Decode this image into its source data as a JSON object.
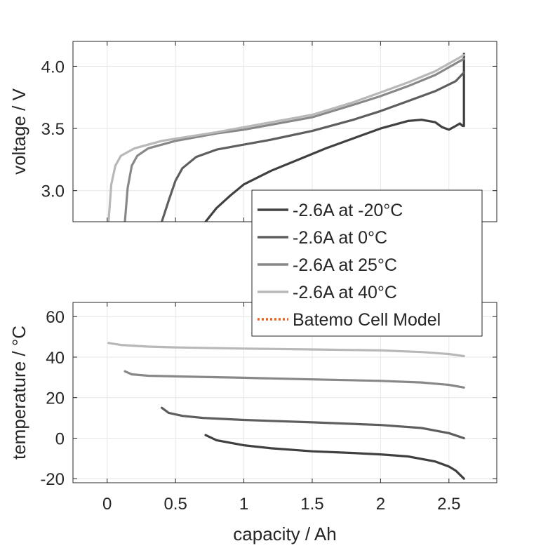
{
  "chart_data": [
    {
      "type": "line",
      "ylabel": "voltage / V",
      "xlim": [
        -0.25,
        2.85
      ],
      "ylim": [
        2.75,
        4.2
      ],
      "yticks": [
        3.0,
        3.5,
        4.0
      ],
      "ytick_labels": [
        "3.0",
        "3.5",
        "4.0"
      ],
      "xticks": [
        0,
        0.5,
        1,
        1.5,
        2,
        2.5
      ],
      "grid": true,
      "series": [
        {
          "name": "-2.6A at -20°C",
          "color": "#404040",
          "x": [
            0.72,
            0.8,
            0.9,
            1.0,
            1.2,
            1.4,
            1.6,
            1.8,
            2.0,
            2.2,
            2.3,
            2.4,
            2.45,
            2.5,
            2.55,
            2.58,
            2.6,
            2.61,
            2.61
          ],
          "y": [
            2.75,
            2.86,
            2.96,
            3.05,
            3.16,
            3.25,
            3.34,
            3.42,
            3.5,
            3.56,
            3.57,
            3.55,
            3.51,
            3.49,
            3.52,
            3.54,
            3.52,
            3.52,
            4.1
          ]
        },
        {
          "name": "-2.6A at 0°C",
          "color": "#5e5e5e",
          "x": [
            0.4,
            0.45,
            0.5,
            0.55,
            0.65,
            0.8,
            1.0,
            1.2,
            1.5,
            1.8,
            2.0,
            2.2,
            2.4,
            2.55,
            2.61
          ],
          "y": [
            2.75,
            2.92,
            3.08,
            3.18,
            3.27,
            3.33,
            3.37,
            3.41,
            3.48,
            3.57,
            3.64,
            3.72,
            3.8,
            3.88,
            3.95
          ]
        },
        {
          "name": "-2.6A at 25°C",
          "color": "#888888",
          "x": [
            0.13,
            0.15,
            0.18,
            0.22,
            0.3,
            0.5,
            0.8,
            1.0,
            1.5,
            1.8,
            2.0,
            2.2,
            2.4,
            2.61
          ],
          "y": [
            2.75,
            3.02,
            3.2,
            3.28,
            3.34,
            3.4,
            3.46,
            3.49,
            3.59,
            3.69,
            3.76,
            3.84,
            3.93,
            4.06
          ]
        },
        {
          "name": "-2.6A at 40°C",
          "color": "#b8b8b8",
          "x": [
            0.01,
            0.03,
            0.06,
            0.1,
            0.2,
            0.4,
            0.8,
            1.0,
            1.5,
            1.8,
            2.0,
            2.2,
            2.4,
            2.61
          ],
          "y": [
            2.75,
            3.05,
            3.2,
            3.28,
            3.34,
            3.4,
            3.47,
            3.51,
            3.61,
            3.71,
            3.79,
            3.87,
            3.96,
            4.09
          ]
        }
      ]
    },
    {
      "type": "line",
      "xlabel": "capacity / Ah",
      "ylabel": "temperature / °C",
      "xlim": [
        -0.25,
        2.85
      ],
      "ylim": [
        -22,
        67
      ],
      "yticks": [
        -20,
        0,
        20,
        40,
        60
      ],
      "ytick_labels": [
        "-20",
        "0",
        "20",
        "40",
        "60"
      ],
      "xticks": [
        0,
        0.5,
        1,
        1.5,
        2,
        2.5
      ],
      "xtick_labels": [
        "0",
        "0.5",
        "1",
        "1.5",
        "2",
        "2.5"
      ],
      "grid": true,
      "series": [
        {
          "name": "-2.6A at -20°C",
          "color": "#404040",
          "x": [
            0.72,
            0.8,
            1.0,
            1.2,
            1.5,
            1.8,
            2.0,
            2.2,
            2.4,
            2.5,
            2.55,
            2.61
          ],
          "y": [
            1.5,
            -1,
            -3.5,
            -5,
            -6.5,
            -7.3,
            -8,
            -9,
            -11.5,
            -14,
            -16,
            -20
          ]
        },
        {
          "name": "-2.6A at 0°C",
          "color": "#5e5e5e",
          "x": [
            0.4,
            0.45,
            0.55,
            0.7,
            1.0,
            1.5,
            2.0,
            2.3,
            2.5,
            2.61
          ],
          "y": [
            15,
            12.5,
            11,
            10,
            9,
            7.8,
            6.5,
            5,
            2.5,
            0
          ]
        },
        {
          "name": "-2.6A at 25°C",
          "color": "#888888",
          "x": [
            0.13,
            0.18,
            0.3,
            0.5,
            1.0,
            1.5,
            2.0,
            2.3,
            2.5,
            2.61
          ],
          "y": [
            33,
            31.5,
            30.8,
            30.5,
            29.8,
            29,
            28.3,
            27.5,
            26.3,
            25
          ]
        },
        {
          "name": "-2.6A at 40°C",
          "color": "#b8b8b8",
          "x": [
            0.01,
            0.1,
            0.3,
            0.5,
            1.0,
            1.5,
            2.0,
            2.3,
            2.5,
            2.61
          ],
          "y": [
            47,
            46,
            45.2,
            44.8,
            44.2,
            43.8,
            43.3,
            42.5,
            41.5,
            40.5
          ]
        }
      ]
    }
  ],
  "legend": {
    "placement": "center-right",
    "entries": [
      {
        "label": "-2.6A at -20°C",
        "color": "#404040",
        "style": "solid"
      },
      {
        "label": "-2.6A at 0°C",
        "color": "#5e5e5e",
        "style": "solid"
      },
      {
        "label": "-2.6A at 25°C",
        "color": "#888888",
        "style": "solid"
      },
      {
        "label": "-2.6A at 40°C",
        "color": "#b8b8b8",
        "style": "solid"
      },
      {
        "label": "Batemo Cell Model",
        "color": "#e8601c",
        "style": "dotted"
      }
    ]
  }
}
